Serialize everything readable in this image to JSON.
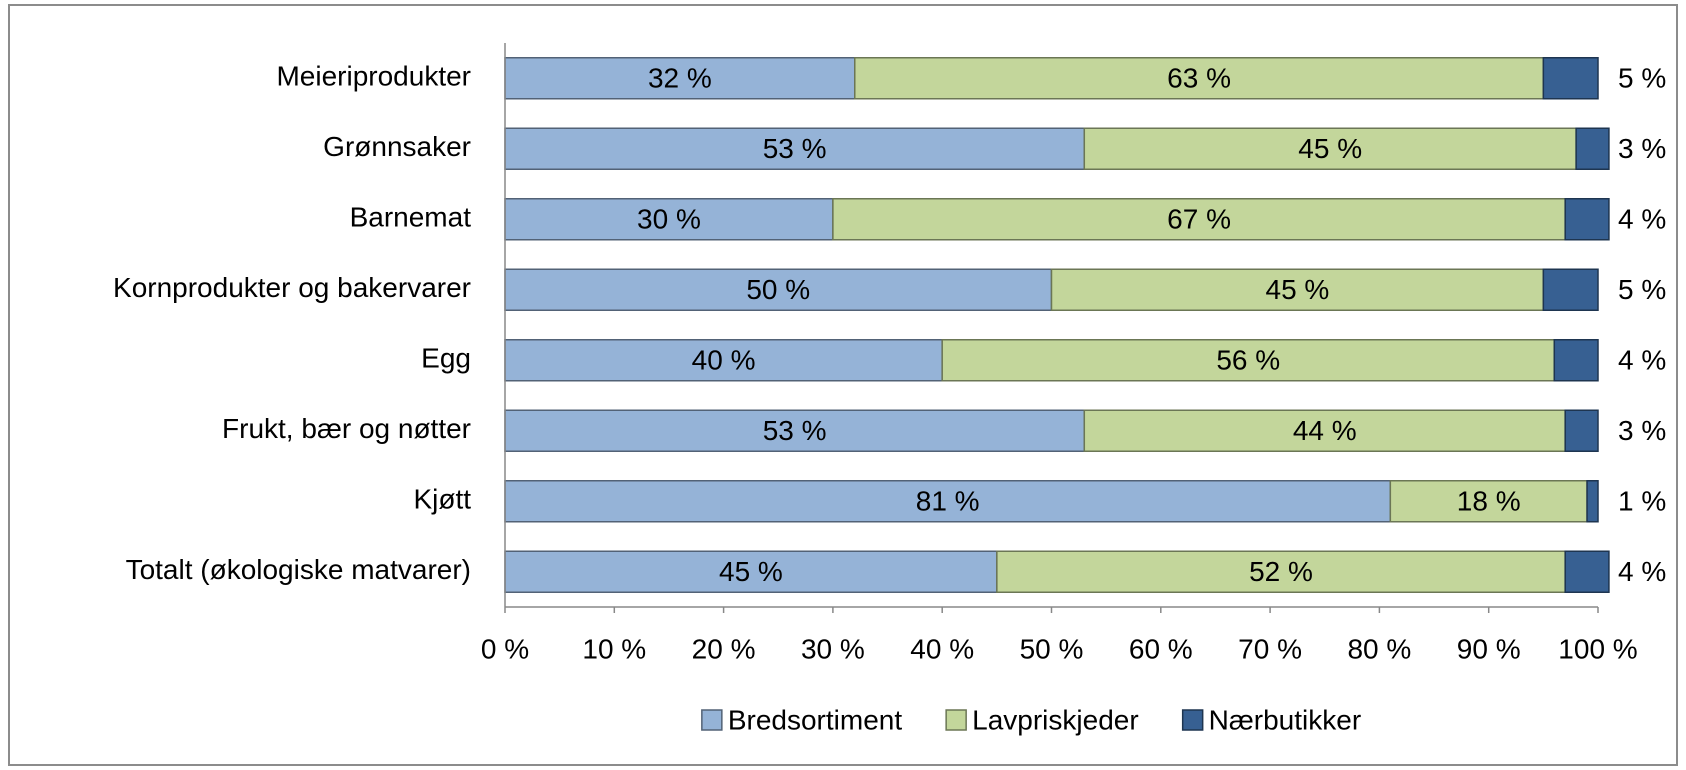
{
  "chart_data": {
    "type": "bar",
    "orientation": "horizontal",
    "stacked": true,
    "categories": [
      "Meieriprodukter",
      "Grønnsaker",
      "Barnemat",
      "Kornprodukter og bakervarer",
      "Egg",
      "Frukt, bær og nøtter",
      "Kjøtt",
      "Totalt (økologiske matvarer)"
    ],
    "series": [
      {
        "name": "Bredsortiment",
        "color": "#95b3d7",
        "values": [
          32,
          53,
          30,
          50,
          40,
          53,
          81,
          45
        ],
        "value_labels": [
          "32 %",
          "53 %",
          "30 %",
          "50 %",
          "40 %",
          "53 %",
          "81 %",
          "45 %"
        ]
      },
      {
        "name": "Lavpriskjeder",
        "color": "#c3d69b",
        "values": [
          63,
          45,
          67,
          45,
          56,
          44,
          18,
          52
        ],
        "value_labels": [
          "63 %",
          "45 %",
          "67 %",
          "45 %",
          "56 %",
          "44 %",
          "18 %",
          "52 %"
        ]
      },
      {
        "name": "Nærbutikker",
        "color": "#376092",
        "values": [
          5,
          3,
          4,
          5,
          4,
          3,
          1,
          4
        ],
        "value_labels": [
          "5 %",
          "3 %",
          "4 %",
          "5 %",
          "4 %",
          "3 %",
          "1 %",
          "4 %"
        ]
      }
    ],
    "xlim": [
      0,
      100
    ],
    "xticks": [
      {
        "value": 0,
        "label": "0 %"
      },
      {
        "value": 10,
        "label": "10 %"
      },
      {
        "value": 20,
        "label": "20 %"
      },
      {
        "value": 30,
        "label": "30 %"
      },
      {
        "value": 40,
        "label": "40 %"
      },
      {
        "value": 50,
        "label": "50 %"
      },
      {
        "value": 60,
        "label": "60 %"
      },
      {
        "value": 70,
        "label": "70 %"
      },
      {
        "value": 80,
        "label": "80 %"
      },
      {
        "value": 90,
        "label": "90 %"
      },
      {
        "value": 100,
        "label": "100 %"
      }
    ],
    "legend": "bottom"
  }
}
